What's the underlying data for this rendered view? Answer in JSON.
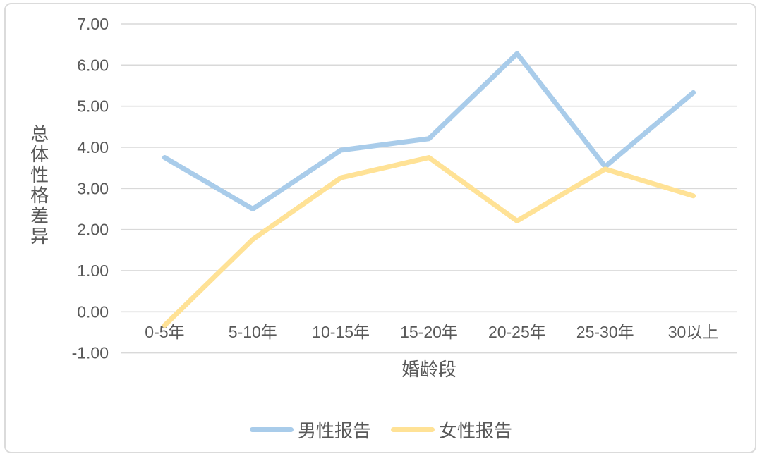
{
  "chart_data": {
    "type": "line",
    "title": "",
    "xlabel": "婚龄段",
    "ylabel": "总体性格差异",
    "categories": [
      "0-5年",
      "5-10年",
      "10-15年",
      "15-20年",
      "20-25年",
      "25-30年",
      "30以上"
    ],
    "series": [
      {
        "name": "男性报告",
        "color": "#A9CCEA",
        "values": [
          3.75,
          2.5,
          3.93,
          4.21,
          6.28,
          3.53,
          5.33
        ]
      },
      {
        "name": "女性报告",
        "color": "#FFE296",
        "values": [
          -0.33,
          1.76,
          3.26,
          3.75,
          2.21,
          3.47,
          2.82
        ]
      }
    ],
    "ylim": [
      -1,
      7
    ],
    "ytick_step": 1,
    "ytick_labels": [
      "-1.00",
      "0.00",
      "1.00",
      "2.00",
      "3.00",
      "4.00",
      "5.00",
      "6.00",
      "7.00"
    ],
    "grid": "horizontal",
    "grid_color": "#D9D9D9",
    "axis_text_color": "#595959",
    "legend_position": "bottom"
  }
}
